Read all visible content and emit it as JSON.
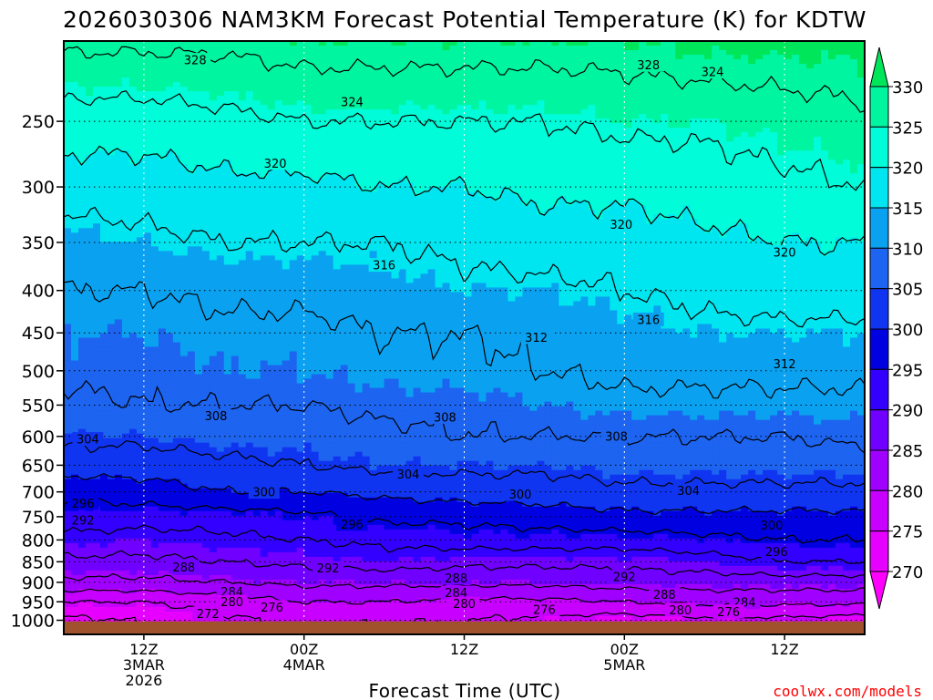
{
  "chart_data": {
    "type": "heatmap",
    "title": "2026030306 NAM3KM Forecast Potential Temperature (K) for KDTW",
    "xlabel": "Forecast Time (UTC)",
    "ylabel": "",
    "credit": "coolwx.com/models",
    "x_range_hours": [
      -5,
      45
    ],
    "y_axis": {
      "scale": "log",
      "reversed": true,
      "range": [
        200,
        1040
      ],
      "ticks": [
        "250",
        "300",
        "350",
        "400",
        "450",
        "500",
        "550",
        "600",
        "650",
        "700",
        "750",
        "800",
        "850",
        "900",
        "950",
        "1000"
      ]
    },
    "x_ticks": [
      {
        "hour": 0,
        "lines": [
          "12Z",
          "3MAR",
          "2026"
        ]
      },
      {
        "hour": 10,
        "lines": [
          "00Z",
          "4MAR"
        ]
      },
      {
        "hour": 20,
        "lines": [
          "12Z"
        ]
      },
      {
        "hour": 30,
        "lines": [
          "00Z",
          "5MAR"
        ]
      },
      {
        "hour": 40,
        "lines": [
          "12Z"
        ]
      }
    ],
    "colorbar": {
      "labels": [
        "330",
        "325",
        "320",
        "315",
        "310",
        "305",
        "300",
        "295",
        "290",
        "285",
        "280",
        "275",
        "270"
      ],
      "levels": [
        270,
        275,
        280,
        285,
        290,
        295,
        300,
        305,
        310,
        315,
        320,
        325,
        330
      ],
      "colors": [
        "#ff00ff",
        "#e600ff",
        "#c800ff",
        "#a000ff",
        "#7000ff",
        "#3300ff",
        "#0000e0",
        "#1035f0",
        "#1d64f0",
        "#0aa2f0",
        "#00e6f0",
        "#00fcd8",
        "#00f5a0",
        "#00e65a"
      ]
    },
    "ground_color": "#a0522d",
    "contour_levels_K": [
      272,
      276,
      280,
      284,
      288,
      292,
      296,
      300,
      304,
      308,
      312,
      316,
      320,
      324,
      328
    ],
    "theta_profile": {
      "pressure_hPa": [
        1000,
        950,
        900,
        850,
        800,
        750,
        700,
        650,
        600,
        550,
        500,
        450,
        400,
        350,
        300,
        250,
        200
      ],
      "hours": [
        -5,
        0,
        5,
        10,
        15,
        20,
        25,
        30,
        35,
        40,
        45
      ],
      "theta_K": [
        [
          271,
          272,
          275,
          277,
          276,
          276,
          275,
          274,
          275,
          275,
          274
        ],
        [
          276,
          276,
          278,
          280,
          280,
          279,
          279,
          280,
          281,
          281,
          281
        ],
        [
          283,
          283,
          284,
          285,
          285,
          285,
          285,
          286,
          286,
          286,
          286
        ],
        [
          287,
          287,
          288,
          289,
          290,
          289,
          289,
          289,
          290,
          292,
          292
        ],
        [
          291,
          290,
          291,
          292,
          293,
          294,
          294,
          294,
          295,
          296,
          296
        ],
        [
          294,
          294,
          294,
          295,
          297,
          297,
          298,
          299,
          299,
          299,
          299
        ],
        [
          297,
          298,
          300,
          300,
          301,
          302,
          302,
          303,
          303,
          303,
          303
        ],
        [
          302,
          302,
          303,
          304,
          305,
          305,
          305,
          306,
          306,
          306,
          306
        ],
        [
          305,
          305,
          306,
          306,
          307,
          308,
          308,
          308,
          308,
          308,
          309
        ],
        [
          307,
          308,
          308,
          308,
          309,
          309,
          310,
          311,
          311,
          311,
          311
        ],
        [
          309,
          309,
          310,
          310,
          311,
          311,
          312,
          313,
          313,
          313,
          313
        ],
        [
          310,
          310,
          311,
          311,
          312,
          312,
          313,
          314,
          315,
          315,
          315
        ],
        [
          312,
          312,
          313,
          313,
          314,
          315,
          315,
          316,
          317,
          318,
          318
        ],
        [
          314,
          315,
          316,
          316,
          316,
          317,
          318,
          318,
          319,
          320,
          320
        ],
        [
          318,
          318,
          319,
          319,
          320,
          320,
          321,
          321,
          322,
          323,
          324
        ],
        [
          322,
          322,
          323,
          324,
          324,
          324,
          324,
          325,
          325,
          326,
          327
        ],
        [
          329,
          329,
          329,
          330,
          330,
          330,
          330,
          330,
          331,
          331,
          331
        ]
      ]
    },
    "contour_labels": [
      {
        "text": "328",
        "hour": 3.2,
        "p": 211
      },
      {
        "text": "328",
        "hour": 31.5,
        "p": 214
      },
      {
        "text": "324",
        "hour": 35.5,
        "p": 218
      },
      {
        "text": "324",
        "hour": 13.0,
        "p": 237
      },
      {
        "text": "320",
        "hour": 8.2,
        "p": 281
      },
      {
        "text": "320",
        "hour": 29.8,
        "p": 333
      },
      {
        "text": "320",
        "hour": 40.0,
        "p": 360
      },
      {
        "text": "316",
        "hour": 15.0,
        "p": 373
      },
      {
        "text": "316",
        "hour": 31.5,
        "p": 434
      },
      {
        "text": "312",
        "hour": 24.5,
        "p": 456
      },
      {
        "text": "312",
        "hour": 40.0,
        "p": 491
      },
      {
        "text": "308",
        "hour": 4.5,
        "p": 567
      },
      {
        "text": "308",
        "hour": 18.8,
        "p": 569
      },
      {
        "text": "308",
        "hour": 29.5,
        "p": 600
      },
      {
        "text": "304",
        "hour": -3.5,
        "p": 605
      },
      {
        "text": "304",
        "hour": 16.5,
        "p": 667
      },
      {
        "text": "304",
        "hour": 34.0,
        "p": 698
      },
      {
        "text": "300",
        "hour": 7.5,
        "p": 701
      },
      {
        "text": "300",
        "hour": 23.5,
        "p": 705
      },
      {
        "text": "300",
        "hour": 39.2,
        "p": 768
      },
      {
        "text": "296",
        "hour": -3.8,
        "p": 723
      },
      {
        "text": "296",
        "hour": 13.0,
        "p": 766
      },
      {
        "text": "296",
        "hour": 39.5,
        "p": 827
      },
      {
        "text": "292",
        "hour": -3.8,
        "p": 758
      },
      {
        "text": "292",
        "hour": 11.5,
        "p": 866
      },
      {
        "text": "292",
        "hour": 30.0,
        "p": 887
      },
      {
        "text": "288",
        "hour": 2.5,
        "p": 863
      },
      {
        "text": "288",
        "hour": 19.5,
        "p": 890
      },
      {
        "text": "288",
        "hour": 32.5,
        "p": 932
      },
      {
        "text": "284",
        "hour": 5.5,
        "p": 925
      },
      {
        "text": "284",
        "hour": 19.5,
        "p": 927
      },
      {
        "text": "284",
        "hour": 37.5,
        "p": 952
      },
      {
        "text": "280",
        "hour": 5.5,
        "p": 951
      },
      {
        "text": "280",
        "hour": 20.0,
        "p": 956
      },
      {
        "text": "280",
        "hour": 33.5,
        "p": 972
      },
      {
        "text": "276",
        "hour": 8.0,
        "p": 965
      },
      {
        "text": "276",
        "hour": 25.0,
        "p": 971
      },
      {
        "text": "276",
        "hour": 36.5,
        "p": 977
      },
      {
        "text": "272",
        "hour": 4.0,
        "p": 983
      }
    ]
  }
}
